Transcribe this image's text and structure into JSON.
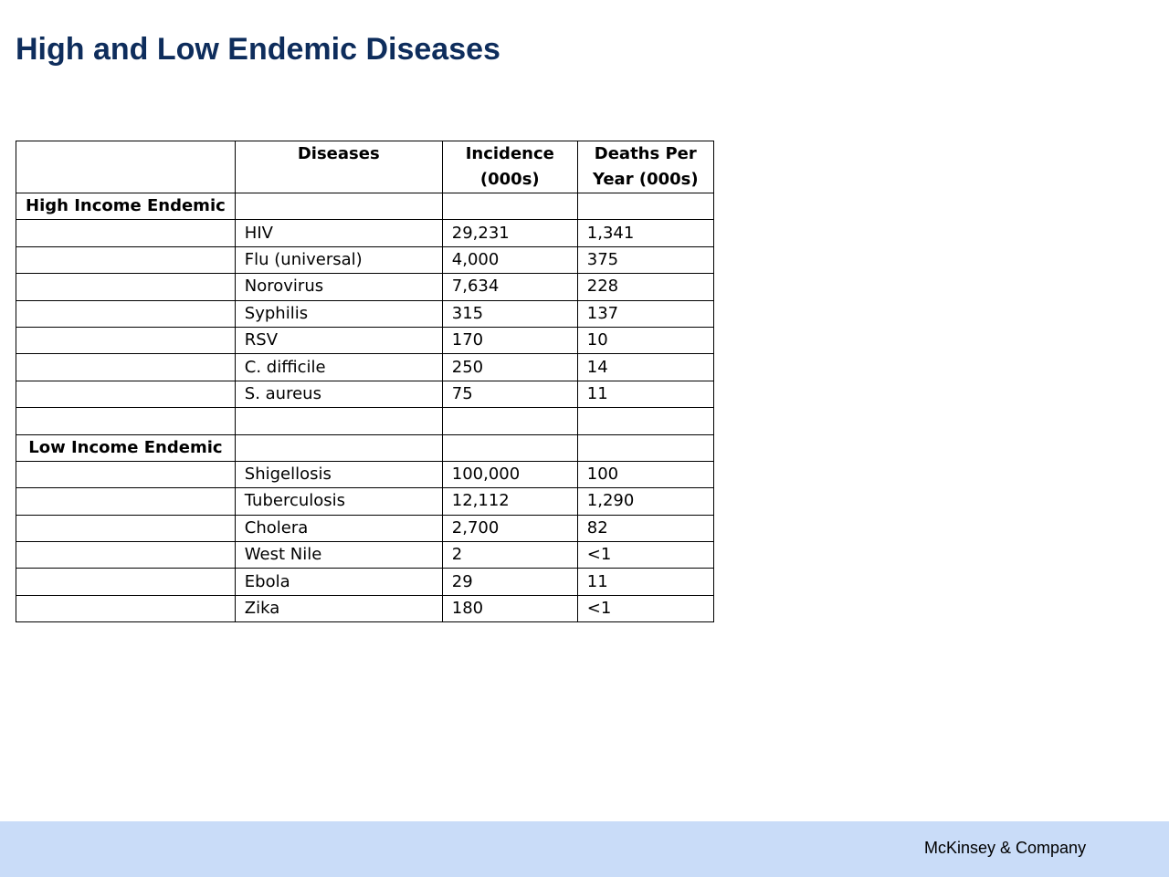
{
  "title": "High and Low Endemic Diseases",
  "table": {
    "headers": {
      "group": "",
      "disease": "Diseases",
      "incidence": "Incidence (000s)",
      "deaths": "Deaths Per Year (000s)"
    },
    "rows": [
      {
        "group": "High Income Endemic",
        "disease": "",
        "incidence": "",
        "deaths": ""
      },
      {
        "group": "",
        "disease": "HIV",
        "incidence": "29,231",
        "deaths": "1,341"
      },
      {
        "group": "",
        "disease": "Flu (universal)",
        "incidence": "4,000",
        "deaths": "375"
      },
      {
        "group": "",
        "disease": "Norovirus",
        "incidence": "7,634",
        "deaths": "228"
      },
      {
        "group": "",
        "disease": "Syphilis",
        "incidence": "315",
        "deaths": "137"
      },
      {
        "group": "",
        "disease": "RSV",
        "incidence": "170",
        "deaths": "10"
      },
      {
        "group": "",
        "disease": "C. difficile",
        "incidence": "250",
        "deaths": "14"
      },
      {
        "group": "",
        "disease": "S. aureus",
        "incidence": "75",
        "deaths": "11"
      },
      {
        "group": "",
        "disease": "",
        "incidence": "",
        "deaths": ""
      },
      {
        "group": "Low Income Endemic",
        "disease": "",
        "incidence": "",
        "deaths": ""
      },
      {
        "group": "",
        "disease": "Shigellosis",
        "incidence": "100,000",
        "deaths": "100"
      },
      {
        "group": "",
        "disease": "Tuberculosis",
        "incidence": "12,112",
        "deaths": "1,290"
      },
      {
        "group": "",
        "disease": "Cholera",
        "incidence": "2,700",
        "deaths": "82"
      },
      {
        "group": "",
        "disease": "West Nile",
        "incidence": "2",
        "deaths": "<1"
      },
      {
        "group": "",
        "disease": "Ebola",
        "incidence": "29",
        "deaths": "11"
      },
      {
        "group": "",
        "disease": "Zika",
        "incidence": "180",
        "deaths": "<1"
      }
    ]
  },
  "footer": {
    "company": "McKinsey & Company"
  },
  "colors": {
    "title": "#0e2d5c",
    "footer_band": "#c9dcf8"
  }
}
